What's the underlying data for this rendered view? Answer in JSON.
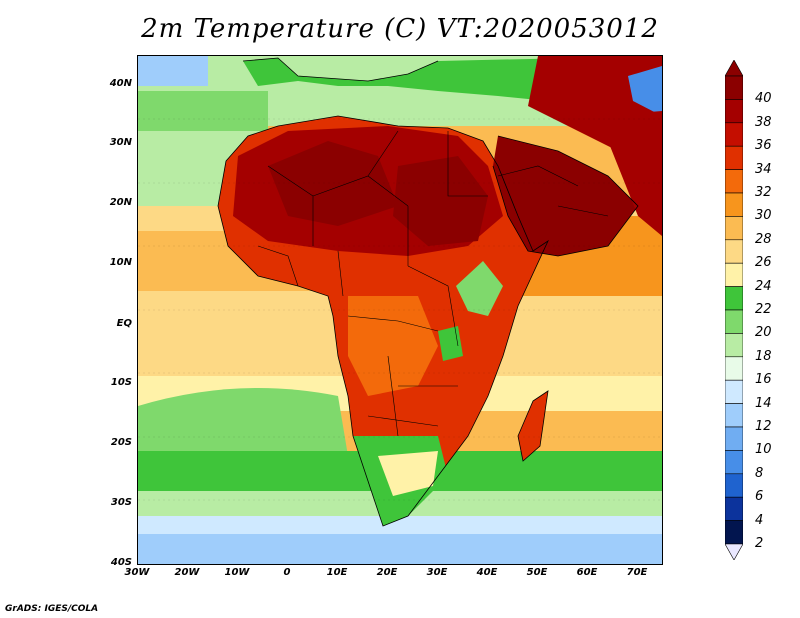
{
  "title": "2m Temperature (C) VT:2020053012",
  "y_axis_labels": [
    "40N",
    "30N",
    "20N",
    "10N",
    "EQ",
    "10S",
    "20S",
    "30S",
    "40S"
  ],
  "x_axis_labels": [
    "30W",
    "20W",
    "10W",
    "0",
    "10E",
    "20E",
    "30E",
    "40E",
    "50E",
    "60E",
    "70E"
  ],
  "colorbar": {
    "values": [
      "40",
      "38",
      "36",
      "34",
      "32",
      "30",
      "28",
      "26",
      "24",
      "22",
      "20",
      "18",
      "16",
      "14",
      "12",
      "10",
      "8",
      "6",
      "4",
      "2"
    ],
    "colors": [
      "#8b0000",
      "#a40000",
      "#c40e00",
      "#e03000",
      "#f36a0b",
      "#f7951d",
      "#fbbb52",
      "#fdd985",
      "#fff2a8",
      "#3fc53a",
      "#7fd96c",
      "#b8eca4",
      "#e8fbe8",
      "#cfe9ff",
      "#9fcdfb",
      "#70adf2",
      "#478ee8",
      "#1f63cf",
      "#0c339c",
      "#02154f"
    ],
    "top_arrow_color": "#8b0000",
    "bottom_arrow_color": "#eae8ff"
  },
  "credit": "GrADS: IGES/COLA"
}
